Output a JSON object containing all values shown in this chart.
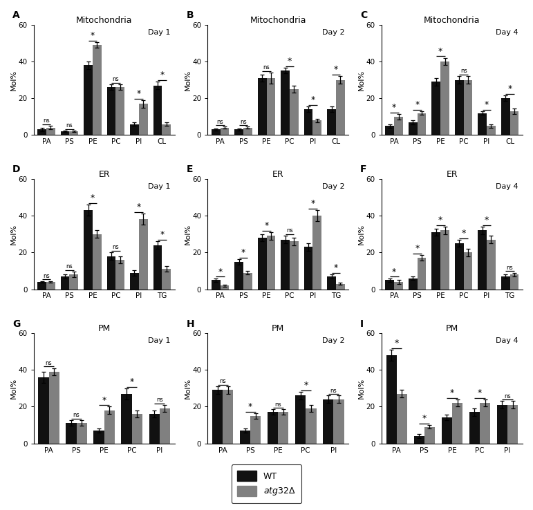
{
  "panels": [
    {
      "label": "A",
      "title": "Mitochondria",
      "day": "Day 1",
      "categories": [
        "PA",
        "PS",
        "PE",
        "PC",
        "PI",
        "CL"
      ],
      "wt": [
        3,
        2,
        38,
        26,
        6,
        27
      ],
      "atg": [
        4,
        2,
        49,
        26,
        17,
        6
      ],
      "wt_err": [
        0.8,
        0.5,
        2,
        1.5,
        1,
        2
      ],
      "atg_err": [
        1,
        0.5,
        1.5,
        1.5,
        2,
        1
      ],
      "sig": [
        "ns",
        "ns",
        "*",
        "ns",
        "*",
        "*"
      ]
    },
    {
      "label": "B",
      "title": "Mitochondria",
      "day": "Day 2",
      "categories": [
        "PA",
        "PS",
        "PE",
        "PC",
        "PI",
        "CL"
      ],
      "wt": [
        3,
        3,
        31,
        35,
        14,
        14
      ],
      "atg": [
        4,
        4,
        31,
        25,
        8,
        30
      ],
      "wt_err": [
        0.5,
        0.5,
        2,
        1.5,
        1.5,
        1.5
      ],
      "atg_err": [
        0.5,
        0.5,
        3,
        2,
        1,
        2
      ],
      "sig": [
        "ns",
        "ns",
        "ns",
        "*",
        "*",
        "*"
      ]
    },
    {
      "label": "C",
      "title": "Mitochondria",
      "day": "Day 4",
      "categories": [
        "PA",
        "PS",
        "PE",
        "PC",
        "PI",
        "CL"
      ],
      "wt": [
        5,
        7,
        29,
        30,
        12,
        20
      ],
      "atg": [
        10,
        12,
        40,
        30,
        5,
        13
      ],
      "wt_err": [
        1,
        1,
        2,
        2,
        1,
        1.5
      ],
      "atg_err": [
        1.5,
        1,
        2,
        2,
        1,
        1.5
      ],
      "sig": [
        "*",
        "*",
        "*",
        "ns",
        "*",
        "*"
      ]
    },
    {
      "label": "D",
      "title": "ER",
      "day": "Day 1",
      "categories": [
        "PA",
        "PS",
        "PE",
        "PC",
        "PI",
        "TG"
      ],
      "wt": [
        4,
        7,
        43,
        18,
        9,
        24
      ],
      "atg": [
        4,
        8,
        30,
        16,
        38,
        11
      ],
      "wt_err": [
        0.5,
        1,
        3,
        2,
        1.5,
        2
      ],
      "atg_err": [
        0.5,
        1.5,
        2,
        2,
        3,
        1.5
      ],
      "sig": [
        "ns",
        "ns",
        "*",
        "ns",
        "*",
        "*"
      ]
    },
    {
      "label": "E",
      "title": "ER",
      "day": "Day 2",
      "categories": [
        "PA",
        "PS",
        "PE",
        "PC",
        "PI",
        "TG"
      ],
      "wt": [
        5,
        15,
        28,
        27,
        23,
        7
      ],
      "atg": [
        2,
        9,
        29,
        26,
        40,
        3
      ],
      "wt_err": [
        1,
        1.5,
        2,
        2,
        2,
        1
      ],
      "atg_err": [
        0.5,
        1,
        2,
        2,
        3,
        0.5
      ],
      "sig": [
        "*",
        "*",
        "*",
        "ns",
        "*",
        "*"
      ]
    },
    {
      "label": "F",
      "title": "ER",
      "day": "Day 4",
      "categories": [
        "PA",
        "PS",
        "PE",
        "PC",
        "PI",
        "TG"
      ],
      "wt": [
        5,
        6,
        31,
        25,
        32,
        7
      ],
      "atg": [
        4,
        17,
        32,
        20,
        27,
        8
      ],
      "wt_err": [
        1,
        1,
        2,
        2,
        2,
        1
      ],
      "atg_err": [
        1,
        1.5,
        2,
        2,
        2,
        1
      ],
      "sig": [
        "*",
        "*",
        "*",
        "*",
        "*",
        "ns"
      ]
    },
    {
      "label": "G",
      "title": "PM",
      "day": "Day 1",
      "categories": [
        "PA",
        "PS",
        "PE",
        "PC",
        "PI"
      ],
      "wt": [
        36,
        11,
        7,
        27,
        16
      ],
      "atg": [
        39,
        11,
        18,
        16,
        19
      ],
      "wt_err": [
        3,
        1.5,
        1,
        3,
        2
      ],
      "atg_err": [
        2,
        1.5,
        2,
        2,
        2
      ],
      "sig": [
        "ns",
        "ns",
        "*",
        "*",
        "ns"
      ]
    },
    {
      "label": "H",
      "title": "PM",
      "day": "Day 2",
      "categories": [
        "PA",
        "PS",
        "PE",
        "PC",
        "PI"
      ],
      "wt": [
        29,
        7,
        17,
        26,
        24
      ],
      "atg": [
        29,
        15,
        17,
        19,
        24
      ],
      "wt_err": [
        2,
        1,
        1.5,
        2,
        2
      ],
      "atg_err": [
        2,
        1.5,
        1.5,
        2,
        2
      ],
      "sig": [
        "ns",
        "*",
        "ns",
        "*",
        "ns"
      ]
    },
    {
      "label": "I",
      "title": "PM",
      "day": "Day 4",
      "categories": [
        "PA",
        "PS",
        "PE",
        "PC",
        "PI"
      ],
      "wt": [
        48,
        4,
        14,
        17,
        21
      ],
      "atg": [
        27,
        9,
        22,
        22,
        21
      ],
      "wt_err": [
        3,
        1,
        1.5,
        2,
        2
      ],
      "atg_err": [
        2,
        1,
        2,
        2,
        2
      ],
      "sig": [
        "*",
        "*",
        "*",
        "*",
        "ns"
      ]
    }
  ],
  "wt_color": "#111111",
  "atg_color": "#808080",
  "bar_width": 0.38,
  "ylim": [
    0,
    60
  ],
  "yticks": [
    0,
    20,
    40,
    60
  ],
  "ylabel": "Mol%"
}
